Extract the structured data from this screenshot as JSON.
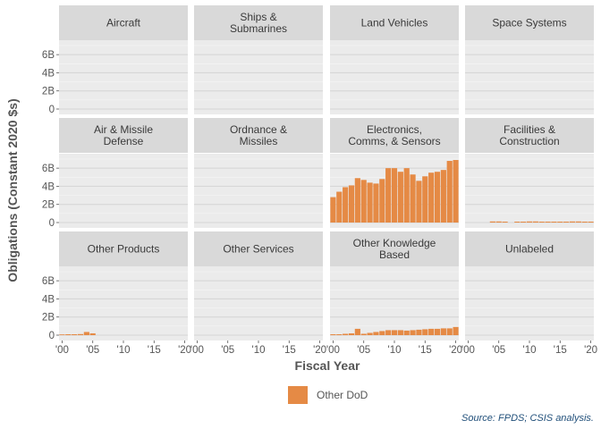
{
  "chart_data": {
    "type": "bar",
    "ylabel": "Obligations (Constant 2020 $s)",
    "xlabel": "Fiscal Year",
    "ylim": [
      0,
      7000000000
    ],
    "y_ticks": [
      {
        "value": 0,
        "label": "0"
      },
      {
        "value": 2000000000,
        "label": "2B"
      },
      {
        "value": 4000000000,
        "label": "4B"
      },
      {
        "value": 6000000000,
        "label": "6B"
      }
    ],
    "xlim": [
      1999.5,
      2020.5
    ],
    "x_ticks": [
      {
        "value": 2000,
        "label": "'00"
      },
      {
        "value": 2005,
        "label": "'05"
      },
      {
        "value": 2010,
        "label": "'10"
      },
      {
        "value": 2015,
        "label": "'15"
      },
      {
        "value": 2020,
        "label": "'20"
      }
    ],
    "x": [
      2000,
      2001,
      2002,
      2003,
      2004,
      2005,
      2006,
      2007,
      2008,
      2009,
      2010,
      2011,
      2012,
      2013,
      2014,
      2015,
      2016,
      2017,
      2018,
      2019,
      2020
    ],
    "legend": {
      "position": "bottom",
      "entries": [
        {
          "name": "Other DoD",
          "color": "#e58a45"
        }
      ]
    },
    "bar_color": "#e58a45",
    "source": "Source: FPDS; CSIS analysis.",
    "facets": [
      {
        "label": [
          "Aircraft"
        ],
        "values": []
      },
      {
        "label": [
          "Ships &",
          "Submarines"
        ],
        "values": []
      },
      {
        "label": [
          "Land Vehicles"
        ],
        "values": []
      },
      {
        "label": [
          "Space Systems"
        ],
        "values": []
      },
      {
        "label": [
          "Air & Missile",
          "Defense"
        ],
        "values": []
      },
      {
        "label": [
          "Ordnance &",
          "Missiles"
        ],
        "values": []
      },
      {
        "label": [
          "Electronics,",
          "Comms, & Sensors"
        ],
        "values": [
          2.8,
          3.4,
          3.9,
          4.1,
          4.9,
          4.7,
          4.4,
          4.3,
          4.8,
          6.0,
          6.0,
          5.6,
          6.0,
          5.3,
          4.6,
          5.1,
          5.5,
          5.6,
          5.8,
          6.8,
          6.9
        ]
      },
      {
        "label": [
          "Facilities &",
          "Construction"
        ],
        "values": [
          0,
          0,
          0,
          0,
          0.12,
          0.12,
          0.1,
          0,
          0.1,
          0.1,
          0.12,
          0.12,
          0.1,
          0.1,
          0.1,
          0.1,
          0.1,
          0.12,
          0.12,
          0.1,
          0.1
        ]
      },
      {
        "label": [
          "Other Products"
        ],
        "values": [
          0.08,
          0.1,
          0.1,
          0.12,
          0.35,
          0.2,
          0,
          0,
          0,
          0,
          0,
          0,
          0,
          0,
          0,
          0,
          0,
          0,
          0,
          0,
          0
        ]
      },
      {
        "label": [
          "Other Services"
        ],
        "values": []
      },
      {
        "label": [
          "Other Knowledge",
          "Based"
        ],
        "values": [
          0.1,
          0.1,
          0.15,
          0.2,
          0.7,
          0.15,
          0.25,
          0.35,
          0.45,
          0.55,
          0.55,
          0.55,
          0.5,
          0.55,
          0.6,
          0.65,
          0.7,
          0.7,
          0.75,
          0.75,
          0.9
        ]
      },
      {
        "label": [
          "Unlabeled"
        ],
        "values": []
      }
    ]
  }
}
